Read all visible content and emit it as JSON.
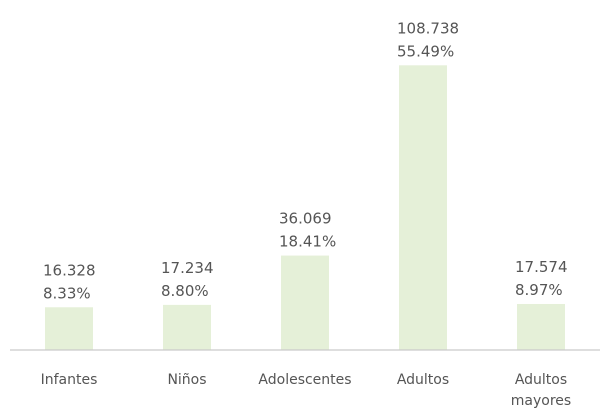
{
  "chart_data": {
    "type": "bar",
    "categories": [
      "Infantes",
      "Niños",
      "Adolescentes",
      "Adultos",
      "Adultos\nmayores"
    ],
    "values": [
      16328,
      17234,
      36069,
      108738,
      17574
    ],
    "value_labels": [
      "16.328",
      "17.234",
      "36.069",
      "108.738",
      "17.574"
    ],
    "percent_labels": [
      "8.33%",
      "8.80%",
      "18.41%",
      "55.49%",
      "8.97%"
    ],
    "title": "",
    "xlabel": "",
    "ylabel": "",
    "ylim": [
      0,
      110000
    ],
    "grid": false,
    "legend": "none",
    "colors": {
      "bar": "#e5f0d8",
      "text": "#555555",
      "axis": "#c9c9c9"
    }
  }
}
